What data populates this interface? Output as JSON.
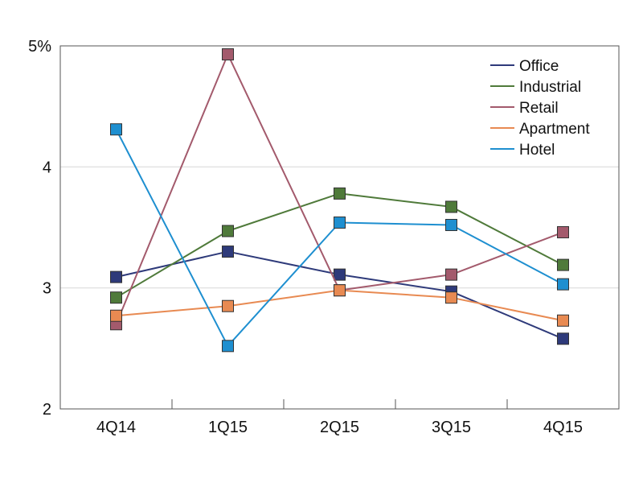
{
  "chart_data": {
    "type": "line",
    "title": "",
    "xlabel": "",
    "ylabel": "",
    "categories": [
      "4Q14",
      "1Q15",
      "2Q15",
      "3Q15",
      "4Q15"
    ],
    "ylim": [
      2,
      5
    ],
    "yticks": [
      {
        "value": 5,
        "label": "5%"
      },
      {
        "value": 4,
        "label": "4"
      },
      {
        "value": 3,
        "label": "3"
      },
      {
        "value": 2,
        "label": "2"
      }
    ],
    "grid": true,
    "legend_position": "top-right",
    "series": [
      {
        "name": "Office",
        "color": "#2e3a7a",
        "values": [
          3.09,
          3.3,
          3.11,
          2.97,
          2.58
        ]
      },
      {
        "name": "Industrial",
        "color": "#4f7a3a",
        "values": [
          2.92,
          3.47,
          3.78,
          3.67,
          3.19
        ]
      },
      {
        "name": "Retail",
        "color": "#a35a6c",
        "values": [
          2.7,
          4.93,
          2.98,
          3.11,
          3.46
        ]
      },
      {
        "name": "Apartment",
        "color": "#e88a52",
        "values": [
          2.77,
          2.85,
          2.98,
          2.92,
          2.73
        ]
      },
      {
        "name": "Hotel",
        "color": "#1e8fd0",
        "values": [
          4.31,
          2.52,
          3.54,
          3.52,
          3.03
        ]
      }
    ]
  }
}
